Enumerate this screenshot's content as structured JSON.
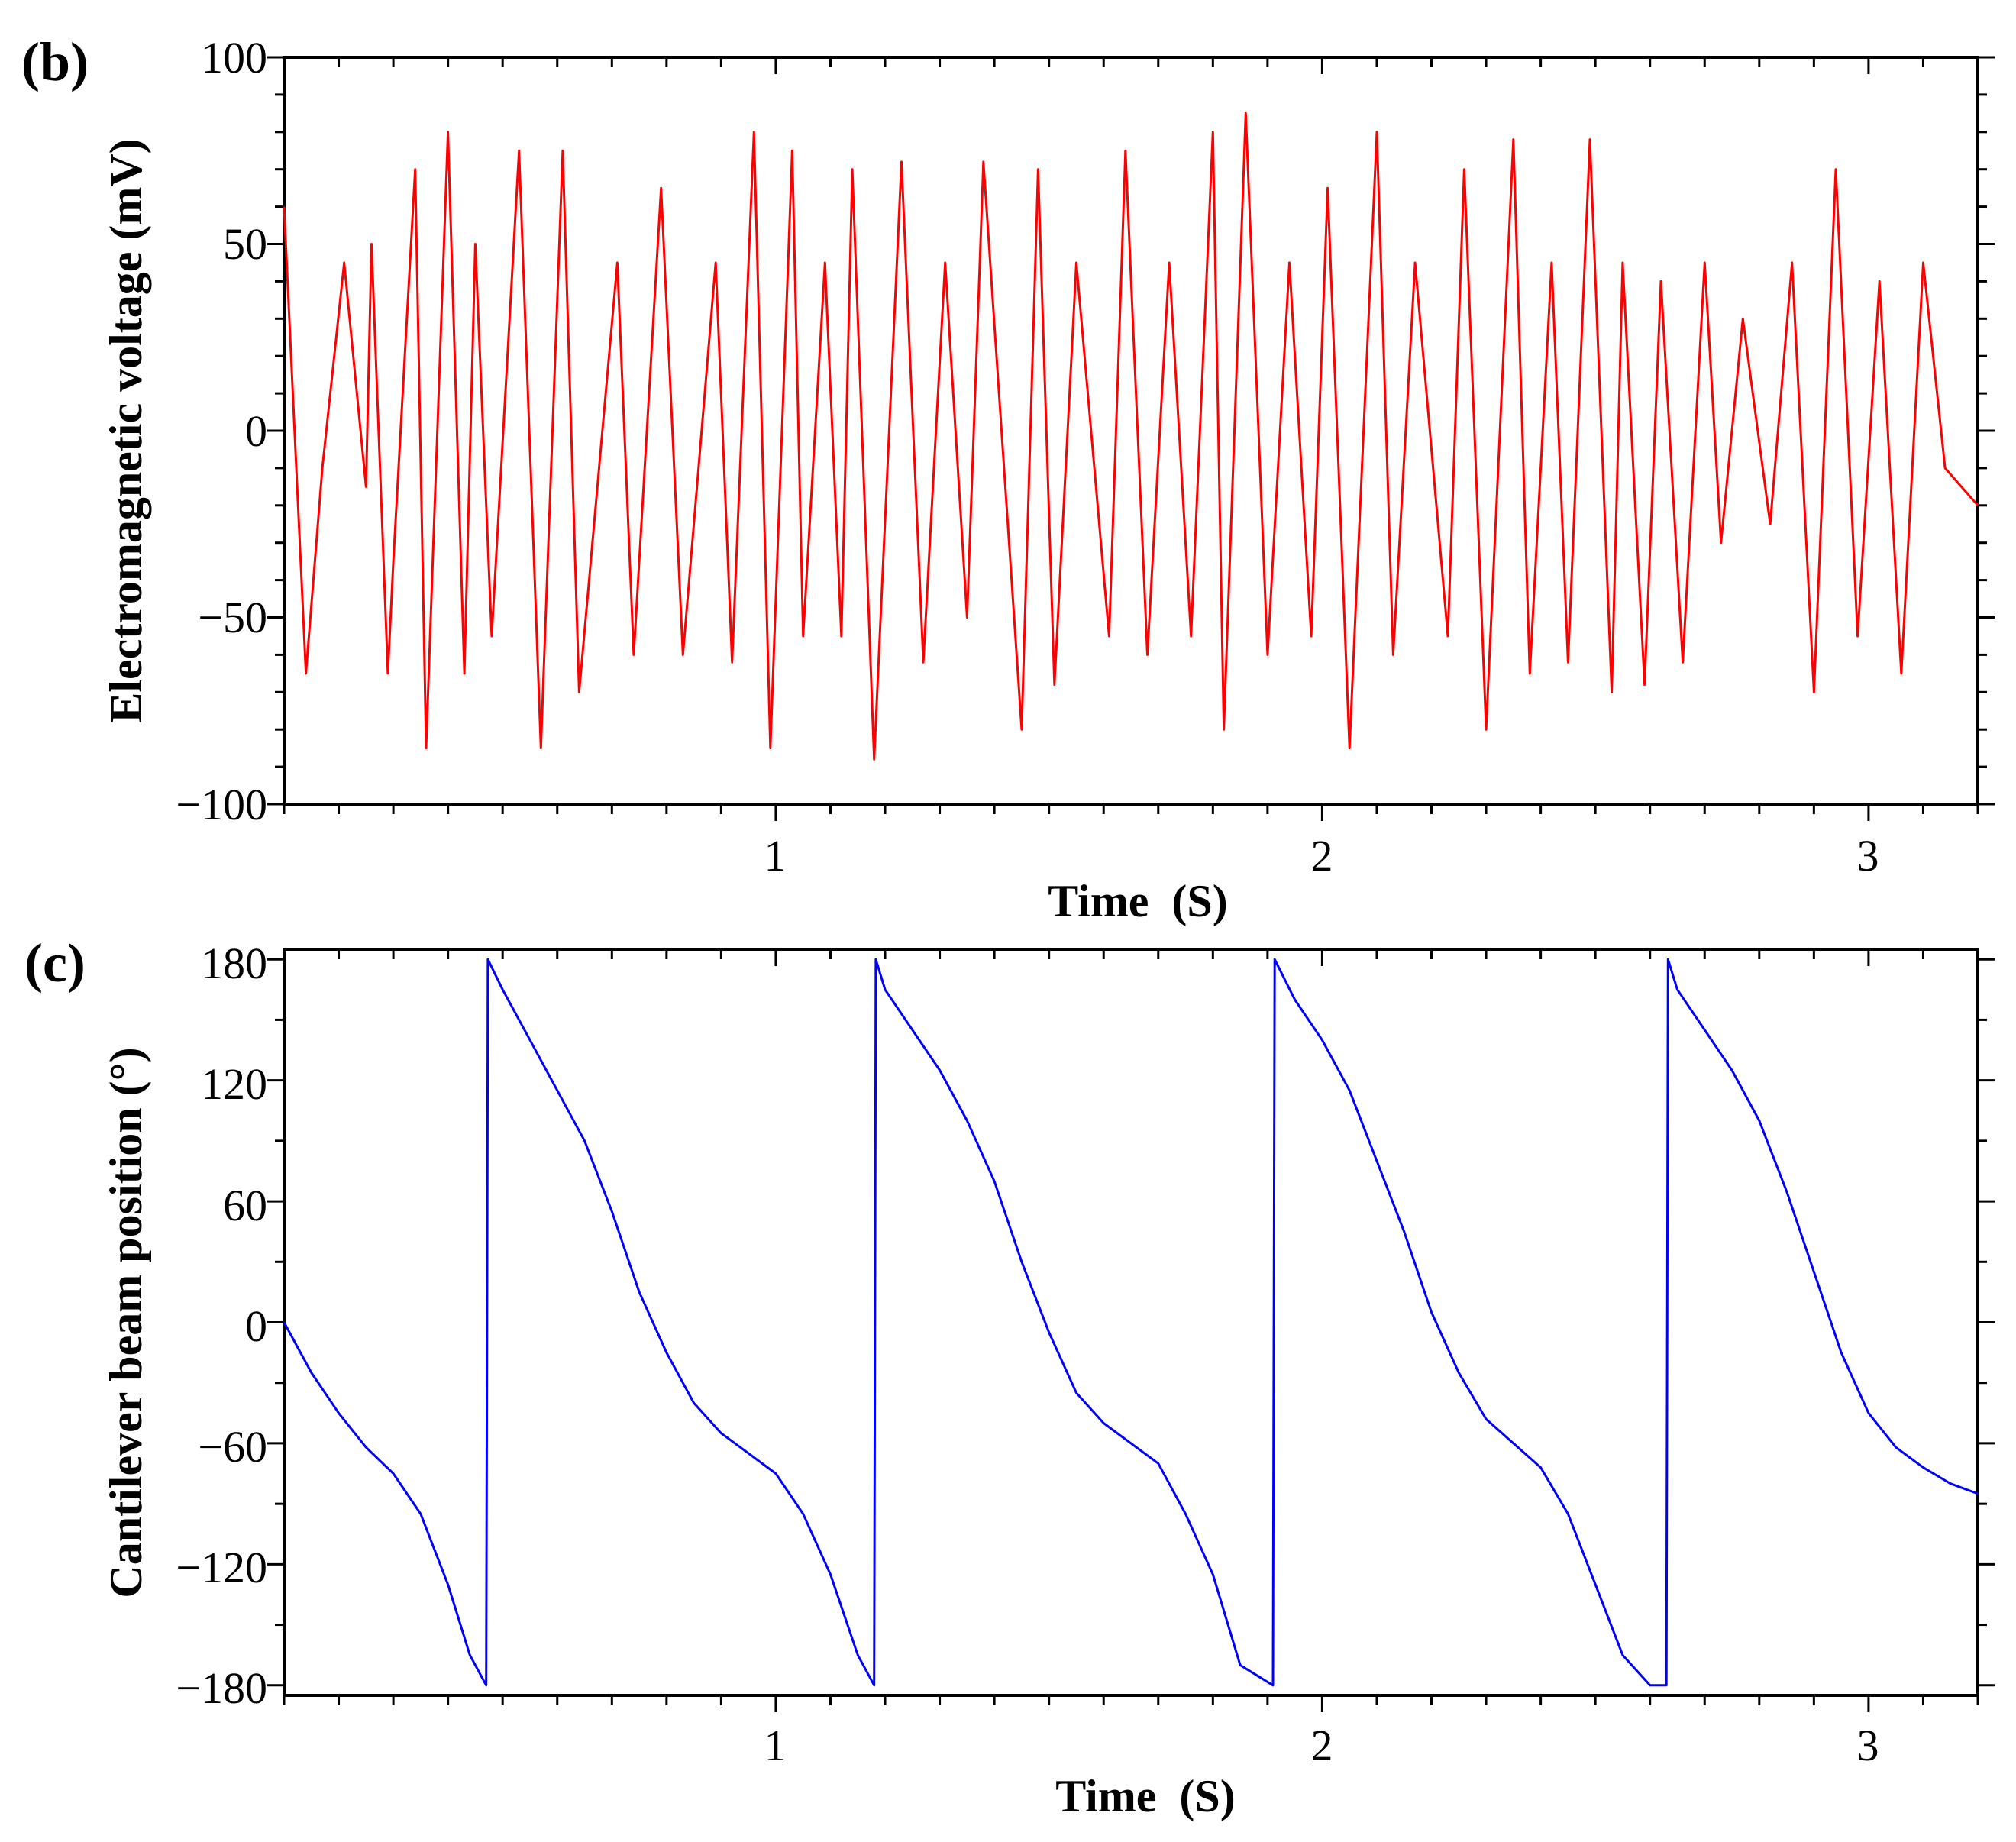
{
  "chart_data": [
    {
      "type": "line",
      "panel_label": "(b)",
      "title": "",
      "xlabel": "Time  (S)",
      "ylabel": "Electromagnetic voltage (mV)",
      "xlim": [
        0.1,
        3.2
      ],
      "ylim": [
        -100,
        100
      ],
      "x_ticks": [
        1,
        2,
        3
      ],
      "x_tick_labels": [
        "1",
        "2",
        "3"
      ],
      "y_ticks": [
        100,
        50,
        0,
        -50,
        -100
      ],
      "y_tick_labels": [
        "100",
        "50",
        "0",
        "−50",
        "−100"
      ],
      "grid": false,
      "series": [
        {
          "name": "Electromagnetic voltage",
          "color": "#ff0000",
          "x": [
            0.1,
            0.14,
            0.17,
            0.21,
            0.25,
            0.26,
            0.29,
            0.3,
            0.34,
            0.36,
            0.4,
            0.43,
            0.45,
            0.48,
            0.53,
            0.57,
            0.61,
            0.64,
            0.71,
            0.74,
            0.79,
            0.83,
            0.89,
            0.92,
            0.96,
            0.99,
            1.03,
            1.05,
            1.09,
            1.12,
            1.14,
            1.18,
            1.23,
            1.27,
            1.31,
            1.35,
            1.38,
            1.45,
            1.48,
            1.51,
            1.55,
            1.61,
            1.64,
            1.68,
            1.72,
            1.76,
            1.8,
            1.82,
            1.86,
            1.9,
            1.94,
            1.98,
            2.01,
            2.05,
            2.1,
            2.13,
            2.17,
            2.23,
            2.26,
            2.3,
            2.35,
            2.38,
            2.42,
            2.45,
            2.49,
            2.53,
            2.55,
            2.59,
            2.62,
            2.66,
            2.7,
            2.73,
            2.77,
            2.82,
            2.86,
            2.9,
            2.94,
            2.98,
            3.02,
            3.06,
            3.1,
            3.14,
            3.17,
            3.2
          ],
          "y": [
            60,
            -65,
            -10,
            45,
            -15,
            50,
            -65,
            -35,
            70,
            -85,
            80,
            -65,
            50,
            -55,
            75,
            -85,
            75,
            -70,
            45,
            -60,
            65,
            -60,
            45,
            -62,
            80,
            -85,
            75,
            -55,
            45,
            -55,
            70,
            -88,
            72,
            -62,
            45,
            -50,
            72,
            -80,
            70,
            -68,
            45,
            -55,
            75,
            -60,
            45,
            -55,
            80,
            -80,
            85,
            -60,
            45,
            -55,
            65,
            -85,
            80,
            -60,
            45,
            -55,
            70,
            -80,
            78,
            -65,
            45,
            -62,
            78,
            -70,
            45,
            -68,
            40,
            -62,
            45,
            -30,
            30,
            -25,
            45,
            -70,
            70,
            -55,
            40,
            -65,
            45,
            -10,
            -15,
            -20
          ]
        }
      ]
    },
    {
      "type": "line",
      "panel_label": "(c)",
      "title": "",
      "xlabel": "Time  (S)",
      "ylabel": "Cantilever beam position (°)",
      "xlim": [
        0.1,
        3.2
      ],
      "ylim": [
        -185,
        185
      ],
      "x_ticks": [
        1,
        2,
        3
      ],
      "x_tick_labels": [
        "1",
        "2",
        "3"
      ],
      "y_ticks": [
        180,
        120,
        60,
        0,
        -60,
        -120,
        -180
      ],
      "y_tick_labels": [
        "180",
        "120",
        "60",
        "0",
        "−60",
        "−120",
        "−180"
      ],
      "grid": false,
      "series": [
        {
          "name": "Cantilever beam position",
          "color": "#0000ff",
          "x": [
            0.1,
            0.15,
            0.2,
            0.25,
            0.3,
            0.35,
            0.4,
            0.44,
            0.47,
            0.473,
            0.5,
            0.55,
            0.6,
            0.65,
            0.7,
            0.75,
            0.8,
            0.85,
            0.9,
            0.95,
            1.0,
            1.05,
            1.1,
            1.15,
            1.18,
            1.183,
            1.2,
            1.25,
            1.3,
            1.35,
            1.4,
            1.45,
            1.5,
            1.55,
            1.6,
            1.65,
            1.7,
            1.75,
            1.8,
            1.85,
            1.91,
            1.913,
            1.95,
            2.0,
            2.05,
            2.1,
            2.15,
            2.2,
            2.25,
            2.3,
            2.35,
            2.4,
            2.45,
            2.5,
            2.55,
            2.6,
            2.63,
            2.633,
            2.65,
            2.7,
            2.75,
            2.8,
            2.85,
            2.9,
            2.95,
            3.0,
            3.05,
            3.1,
            3.15,
            3.2
          ],
          "y": [
            0,
            -25,
            -45,
            -62,
            -75,
            -95,
            -130,
            -165,
            -180,
            180,
            165,
            140,
            115,
            90,
            55,
            15,
            -15,
            -40,
            -55,
            -65,
            -75,
            -95,
            -125,
            -165,
            -180,
            180,
            165,
            145,
            125,
            100,
            70,
            30,
            -5,
            -35,
            -50,
            -60,
            -70,
            -95,
            -125,
            -170,
            -180,
            180,
            160,
            140,
            115,
            80,
            45,
            5,
            -25,
            -48,
            -60,
            -72,
            -95,
            -130,
            -165,
            -180,
            -180,
            180,
            165,
            145,
            125,
            100,
            65,
            25,
            -15,
            -45,
            -62,
            -72,
            -80,
            -85
          ]
        }
      ]
    }
  ]
}
